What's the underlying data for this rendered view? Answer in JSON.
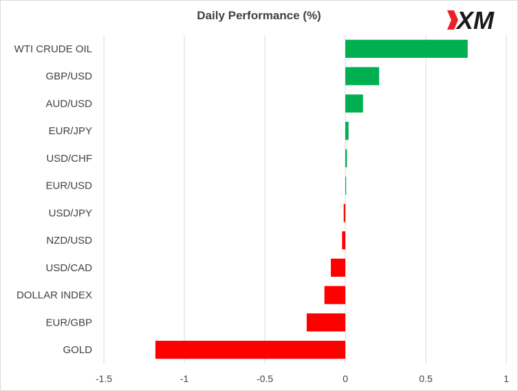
{
  "brand": {
    "logo_text": "XM",
    "logo_red": "#ee2028",
    "logo_dark": "#1a1a1a"
  },
  "colors": {
    "positive": "#00b050",
    "negative": "#ff0000",
    "grid": "#d9d9d9",
    "text": "#404040"
  },
  "chart_data": {
    "type": "bar",
    "orientation": "horizontal",
    "title": "Daily Performance (%)",
    "xlabel": "",
    "ylabel": "",
    "categories": [
      "WTI CRUDE OIL",
      "GBP/USD",
      "AUD/USD",
      "EUR/JPY",
      "USD/CHF",
      "EUR/USD",
      "USD/JPY",
      "NZD/USD",
      "USD/CAD",
      "DOLLAR INDEX",
      "EUR/GBP",
      "GOLD"
    ],
    "values": [
      0.76,
      0.21,
      0.11,
      0.02,
      0.01,
      0.005,
      -0.01,
      -0.02,
      -0.09,
      -0.13,
      -0.24,
      -1.18
    ],
    "xlim": [
      -1.5,
      1
    ],
    "xticks": [
      "-1.5",
      "-1",
      "-0.5",
      "0",
      "0.5",
      "1"
    ],
    "xtick_values": [
      -1.5,
      -1,
      -0.5,
      0,
      0.5,
      1
    ],
    "grid": true,
    "legend": "none"
  }
}
